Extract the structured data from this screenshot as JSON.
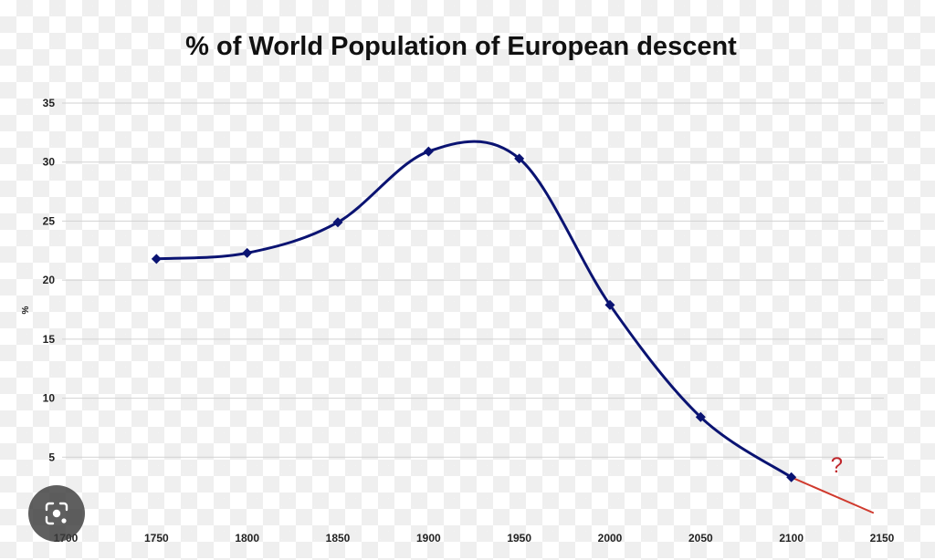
{
  "chart_data": {
    "type": "line",
    "title": "% of World Population of European descent",
    "xlabel": "",
    "ylabel": "%",
    "x_ticks": [
      "1700",
      "1750",
      "1800",
      "1850",
      "1900",
      "1950",
      "2000",
      "2050",
      "2100",
      "2150"
    ],
    "y_ticks": [
      "5",
      "10",
      "15",
      "20",
      "25",
      "30",
      "35"
    ],
    "xlim": [
      1700,
      2150
    ],
    "ylim": [
      0,
      35
    ],
    "grid": true,
    "legend": "none",
    "series": [
      {
        "x": [
          1750,
          1800,
          1850,
          1900,
          1950,
          2000,
          2050,
          2100
        ],
        "y": [
          21.8,
          22.3,
          24.9,
          30.9,
          30.3,
          17.9,
          8.4,
          3.3
        ],
        "color": "#0a1372"
      },
      {
        "x": [
          2100,
          2145
        ],
        "y": [
          3.3,
          0.3
        ],
        "color": "#d03a2e",
        "style": "projection"
      }
    ],
    "annotations": [
      {
        "text": "?",
        "x": 2125,
        "y": 3.7,
        "color": "#c0262b"
      }
    ]
  },
  "overlay": {
    "lens_button_icon": "lens-search-icon"
  }
}
